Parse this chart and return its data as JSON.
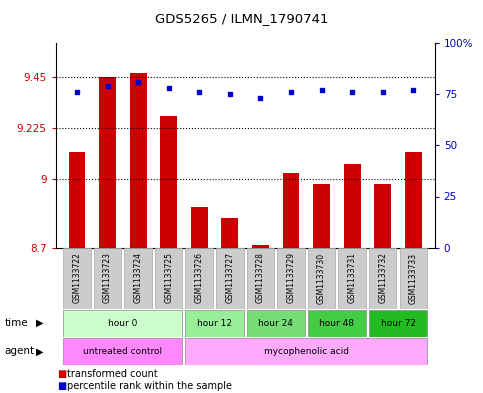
{
  "title": "GDS5265 / ILMN_1790741",
  "samples": [
    "GSM1133722",
    "GSM1133723",
    "GSM1133724",
    "GSM1133725",
    "GSM1133726",
    "GSM1133727",
    "GSM1133728",
    "GSM1133729",
    "GSM1133730",
    "GSM1133731",
    "GSM1133732",
    "GSM1133733"
  ],
  "transformed_counts": [
    9.12,
    9.45,
    9.47,
    9.28,
    8.88,
    8.83,
    8.71,
    9.03,
    8.98,
    9.07,
    8.98,
    9.12
  ],
  "percentile_ranks": [
    76,
    79,
    81,
    78,
    76,
    75,
    73,
    76,
    77,
    76,
    76,
    77
  ],
  "ylim_left": [
    8.7,
    9.6
  ],
  "ylim_right": [
    0,
    100
  ],
  "yticks_left": [
    8.7,
    9.0,
    9.225,
    9.45
  ],
  "ytick_labels_left": [
    "8.7",
    "9",
    "9.225",
    "9.45"
  ],
  "yticks_right": [
    0,
    25,
    50,
    75,
    100
  ],
  "ytick_labels_right": [
    "0",
    "25",
    "50",
    "75",
    "100%"
  ],
  "hlines": [
    9.0,
    9.225,
    9.45
  ],
  "bar_color": "#cc0000",
  "dot_color": "#0000cc",
  "bar_bottom": 8.7,
  "time_groups": [
    {
      "label": "hour 0",
      "start": 0,
      "end": 3,
      "color": "#ccffcc"
    },
    {
      "label": "hour 12",
      "start": 4,
      "end": 5,
      "color": "#99ee99"
    },
    {
      "label": "hour 24",
      "start": 6,
      "end": 7,
      "color": "#77dd77"
    },
    {
      "label": "hour 48",
      "start": 8,
      "end": 9,
      "color": "#44cc44"
    },
    {
      "label": "hour 72",
      "start": 10,
      "end": 11,
      "color": "#22bb22"
    }
  ],
  "agent_groups": [
    {
      "label": "untreated control",
      "start": 0,
      "end": 3,
      "color": "#ff88ff"
    },
    {
      "label": "mycophenolic acid",
      "start": 4,
      "end": 11,
      "color": "#ffaaff"
    }
  ],
  "legend_red": "transformed count",
  "legend_blue": "percentile rank within the sample"
}
